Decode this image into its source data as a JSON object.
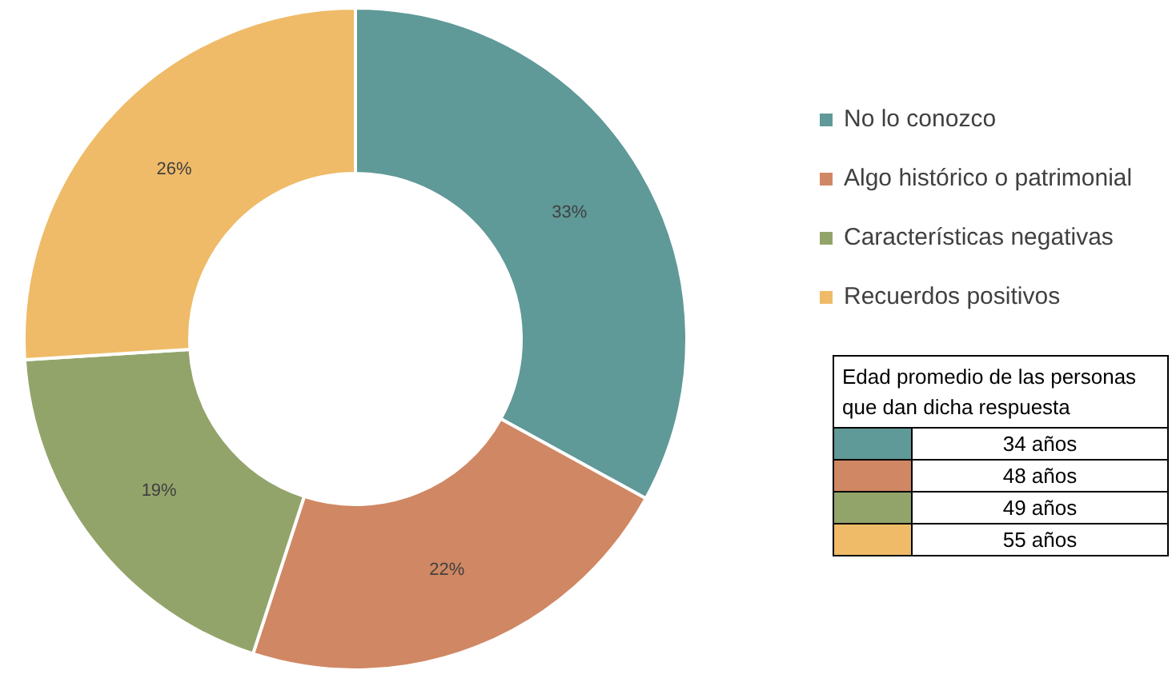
{
  "chart_data": {
    "type": "donut",
    "categories": [
      "No lo conozco",
      "Algo histórico o patrimonial",
      "Características negativas",
      "Recuerdos positivos"
    ],
    "values": [
      33,
      22,
      19,
      26
    ],
    "colors": [
      "#5f9998",
      "#d08763",
      "#93a46b",
      "#efbb68"
    ],
    "value_labels": [
      "33%",
      "22%",
      "19%",
      "26%"
    ],
    "legend": "right",
    "annotations": [
      "Edad promedio de las personas que dan dicha respuesta",
      "34 años",
      "48 años",
      "49 años",
      "55 años"
    ]
  }
}
